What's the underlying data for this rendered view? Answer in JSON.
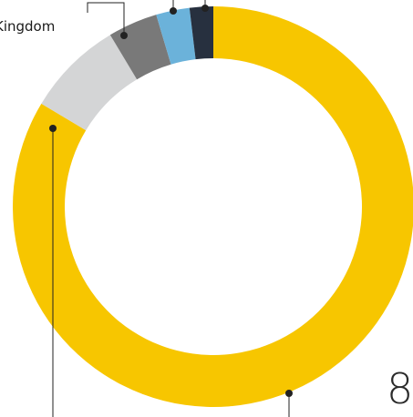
{
  "chart_data": {
    "type": "pie",
    "style": "donut",
    "title": "",
    "slices": [
      {
        "value": 83.6,
        "color": "#F7C600"
      },
      {
        "value": 7.8,
        "color": "#D4D5D6"
      },
      {
        "value": 4.0,
        "color": "#797979"
      },
      {
        "value": 2.7,
        "color": "#6BB2DA"
      },
      {
        "value": 1.9,
        "color": "#27303F"
      }
    ],
    "annotations": {
      "uk_label": "Kingdom",
      "big_value": "8"
    }
  }
}
